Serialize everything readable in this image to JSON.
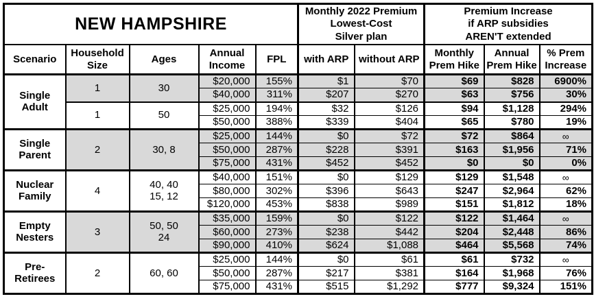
{
  "chart_data": {
    "type": "table",
    "title": "NEW HAMPSHIRE",
    "column_groups": [
      {
        "label": "",
        "span": 5
      },
      {
        "label": "Monthly 2022 Premium\nLowest-Cost\nSilver plan",
        "span": 2
      },
      {
        "label": "Premium Increase\nif ARP subsidies\nAREN'T extended",
        "span": 3
      }
    ],
    "columns": [
      "Scenario",
      "Household\nSize",
      "Ages",
      "Annual\nIncome",
      "FPL",
      "with ARP",
      "without ARP",
      "Monthly\nPrem Hike",
      "Annual\nPrem Hike",
      "% Prem\nIncrease"
    ],
    "groups": [
      {
        "scenario": "Single\nAdult",
        "subgroups": [
          {
            "household_size": "1",
            "ages": "30",
            "shaded": true,
            "rows": [
              [
                "$20,000",
                "155%",
                "$1",
                "$70",
                "$69",
                "$828",
                "6900%"
              ],
              [
                "$40,000",
                "311%",
                "$207",
                "$270",
                "$63",
                "$756",
                "30%"
              ]
            ]
          },
          {
            "household_size": "1",
            "ages": "50",
            "shaded": false,
            "rows": [
              [
                "$25,000",
                "194%",
                "$32",
                "$126",
                "$94",
                "$1,128",
                "294%"
              ],
              [
                "$50,000",
                "388%",
                "$339",
                "$404",
                "$65",
                "$780",
                "19%"
              ]
            ]
          }
        ]
      },
      {
        "scenario": "Single\nParent",
        "subgroups": [
          {
            "household_size": "2",
            "ages": "30, 8",
            "shaded": true,
            "rows": [
              [
                "$25,000",
                "144%",
                "$0",
                "$72",
                "$72",
                "$864",
                "∞"
              ],
              [
                "$50,000",
                "287%",
                "$228",
                "$391",
                "$163",
                "$1,956",
                "71%"
              ],
              [
                "$75,000",
                "431%",
                "$452",
                "$452",
                "$0",
                "$0",
                "0%"
              ]
            ]
          }
        ]
      },
      {
        "scenario": "Nuclear\nFamily",
        "subgroups": [
          {
            "household_size": "4",
            "ages": "40, 40\n15, 12",
            "shaded": false,
            "rows": [
              [
                "$40,000",
                "151%",
                "$0",
                "$129",
                "$129",
                "$1,548",
                "∞"
              ],
              [
                "$80,000",
                "302%",
                "$396",
                "$643",
                "$247",
                "$2,964",
                "62%"
              ],
              [
                "$120,000",
                "453%",
                "$838",
                "$989",
                "$151",
                "$1,812",
                "18%"
              ]
            ]
          }
        ]
      },
      {
        "scenario": "Empty\nNesters",
        "subgroups": [
          {
            "household_size": "3",
            "ages": "50, 50\n24",
            "shaded": true,
            "rows": [
              [
                "$35,000",
                "159%",
                "$0",
                "$122",
                "$122",
                "$1,464",
                "∞"
              ],
              [
                "$60,000",
                "273%",
                "$238",
                "$442",
                "$204",
                "$2,448",
                "86%"
              ],
              [
                "$90,000",
                "410%",
                "$624",
                "$1,088",
                "$464",
                "$5,568",
                "74%"
              ]
            ]
          }
        ]
      },
      {
        "scenario": "Pre-\nRetirees",
        "subgroups": [
          {
            "household_size": "2",
            "ages": "60, 60",
            "shaded": false,
            "rows": [
              [
                "$25,000",
                "144%",
                "$0",
                "$61",
                "$61",
                "$732",
                "∞"
              ],
              [
                "$50,000",
                "287%",
                "$217",
                "$381",
                "$164",
                "$1,968",
                "76%"
              ],
              [
                "$75,000",
                "431%",
                "$515",
                "$1,292",
                "$777",
                "$9,324",
                "151%"
              ]
            ]
          }
        ]
      }
    ],
    "styles": {
      "shade_color": "#d9d9d9",
      "border_color": "#000000",
      "text_color": "#000000",
      "background_color": "#ffffff"
    }
  }
}
